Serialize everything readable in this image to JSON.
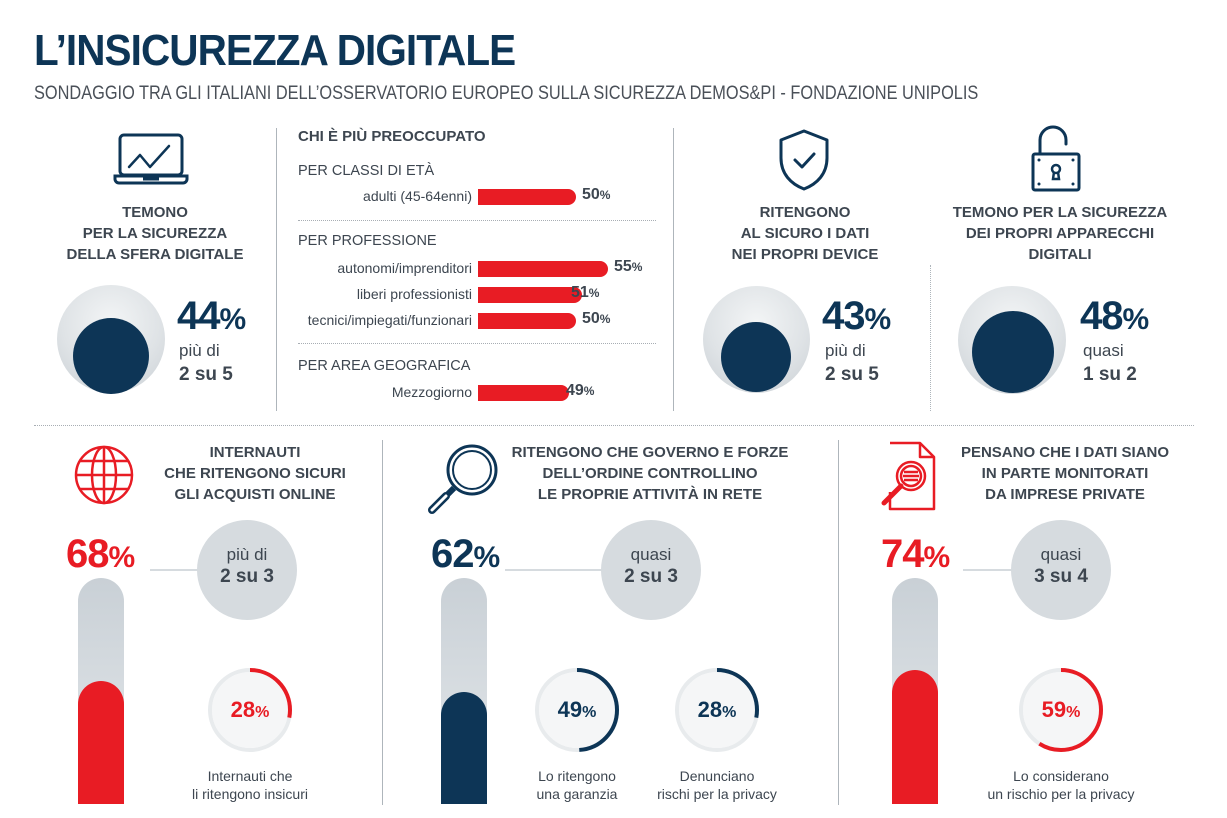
{
  "header": {
    "title": "L’INSICUREZZA DIGITALE",
    "subtitle": "SONDAGGIO TRA GLI ITALIANI DELL’OSSERVATORIO EUROPEO SULLA SICUREZZA DEMOS&PI - FONDAZIONE UNIPOLIS"
  },
  "colors": {
    "navy": "#0d3556",
    "red": "#e81c24",
    "grey": "#d6dbdf",
    "text": "#3d4650"
  },
  "panel1": {
    "icon": "laptop-chart-icon",
    "heading": [
      "TEMONO",
      "PER LA SICUREZZA",
      "DELLA SFERA DIGITALE"
    ],
    "value": "44",
    "pct": "%",
    "fraction": 0.44,
    "note1": "più di",
    "note2": "2 su 5"
  },
  "breakdown": {
    "title": "CHI È PIÙ PREOCCUPATO",
    "groups": [
      {
        "title": "PER CLASSI DI ETÀ",
        "items": [
          {
            "label": "adulti (45-64enni)",
            "value": 50,
            "text": "50"
          }
        ]
      },
      {
        "title": "PER PROFESSIONE",
        "items": [
          {
            "label": "autonomi/imprenditori",
            "value": 55,
            "text": "55"
          },
          {
            "label": "liberi professionisti",
            "value": 51,
            "text": "51"
          },
          {
            "label": "tecnici/impiegati/funzionari",
            "value": 50,
            "text": "50"
          }
        ]
      },
      {
        "title": "PER AREA GEOGRAFICA",
        "items": [
          {
            "label": "Mezzogiorno",
            "value": 49,
            "text": "49"
          }
        ]
      }
    ],
    "pct": "%"
  },
  "panel3": {
    "icon": "shield-check-icon",
    "heading": [
      "RITENGONO",
      "AL SICURO I DATI",
      "NEI PROPRI DEVICE"
    ],
    "value": "43",
    "pct": "%",
    "fraction": 0.43,
    "note1": "più di",
    "note2": "2 su 5"
  },
  "panel4": {
    "icon": "open-padlock-icon",
    "heading": [
      "TEMONO PER LA SICUREZZA",
      "DEI PROPRI APPARECCHI",
      "DIGITALI"
    ],
    "value": "48",
    "pct": "%",
    "fraction": 0.48,
    "note1": "quasi",
    "note2": "1 su 2"
  },
  "panel5": {
    "icon": "globe-icon",
    "heading": [
      "INTERNAUTI",
      "CHE RITENGONO SICURI",
      "GLI ACQUISTI ONLINE"
    ],
    "value": "68",
    "pct": "%",
    "fraction": 0.68,
    "bubble1": "più di",
    "bubble2": "2 su 3",
    "rings": [
      {
        "value": "28",
        "fraction": 0.28,
        "caption": [
          "Internauti che",
          "li ritengono insicuri"
        ]
      }
    ]
  },
  "panel6": {
    "icon": "magnifier-icon",
    "heading": [
      "RITENGONO CHE GOVERNO E FORZE",
      "DELL’ORDINE CONTROLLINO",
      "LE PROPRIE ATTIVITÀ IN RETE"
    ],
    "value": "62",
    "pct": "%",
    "fraction": 0.62,
    "bubble1": "quasi",
    "bubble2": "2 su 3",
    "rings": [
      {
        "value": "49",
        "fraction": 0.49,
        "caption": [
          "Lo ritengono",
          "una garanzia"
        ]
      },
      {
        "value": "28",
        "fraction": 0.28,
        "caption": [
          "Denunciano",
          "rischi per la privacy"
        ]
      }
    ]
  },
  "panel7": {
    "icon": "document-search-icon",
    "heading": [
      "PENSANO CHE I DATI SIANO",
      "IN PARTE  MONITORATI",
      "DA IMPRESE  PRIVATE"
    ],
    "value": "74",
    "pct": "%",
    "fraction": 0.74,
    "bubble1": "quasi",
    "bubble2": "3 su 4",
    "rings": [
      {
        "value": "59",
        "fraction": 0.59,
        "caption": [
          "Lo considerano",
          "un rischio per la privacy"
        ]
      }
    ]
  }
}
